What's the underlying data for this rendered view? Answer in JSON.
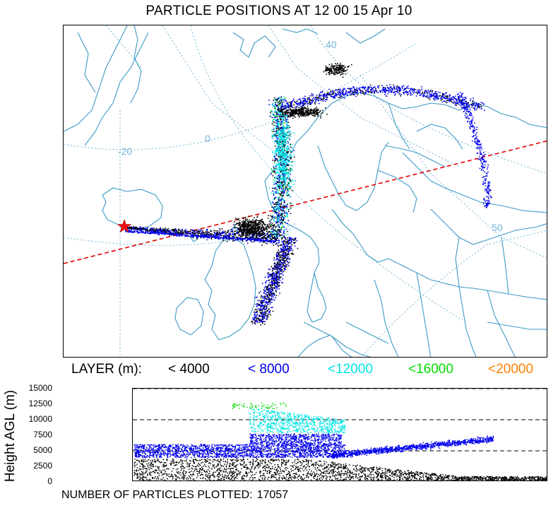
{
  "title": "PARTICLE POSITIONS AT 12 00  15 Apr 10",
  "legend": {
    "label": "LAYER (m):",
    "items": [
      {
        "label": "< 4000",
        "color": "#000000"
      },
      {
        "label": "< 8000",
        "color": "#0000ee"
      },
      {
        "label": "<12000",
        "color": "#00e5e5"
      },
      {
        "label": "<16000",
        "color": "#00dd00"
      },
      {
        "label": "<20000",
        "color": "#ff7f00"
      }
    ]
  },
  "map": {
    "grid_labels": [
      "40",
      "0",
      "-20",
      "50"
    ],
    "source_marker": "red-star",
    "coast_color": "#3b9ac6",
    "grid_color": "#6fb4d6",
    "trajectory_line_color": "#e00000"
  },
  "height_panel": {
    "ylabel": "Height AGL (m)",
    "yticks": [
      "15000",
      "12500",
      "10000",
      "7500",
      "5000",
      "2500",
      "0"
    ]
  },
  "footer": {
    "count_label": "NUMBER OF PARTICLES PLOTTED:",
    "count_value": "17057"
  },
  "chart_data": [
    {
      "type": "scatter",
      "title": "PARTICLE POSITIONS AT 12 00  15 Apr 10",
      "series": [
        {
          "name": "< 4000",
          "color": "#000000"
        },
        {
          "name": "< 8000",
          "color": "#0000ee"
        },
        {
          "name": "<12000",
          "color": "#00e5e5"
        },
        {
          "name": "<16000",
          "color": "#00dd00"
        },
        {
          "name": "<20000",
          "color": "#ff7f00"
        }
      ],
      "particle_count": 17057
    },
    {
      "type": "scatter",
      "ylabel": "Height AGL (m)",
      "ylim": [
        0,
        15000
      ],
      "yticks": [
        0,
        2500,
        5000,
        7500,
        10000,
        12500,
        15000
      ],
      "reference_lines": [
        5000,
        10000,
        15000
      ],
      "layers": [
        {
          "name": "< 4000",
          "color": "#000000",
          "height_range": [
            0,
            3800
          ]
        },
        {
          "name": "< 8000",
          "color": "#0000ee",
          "height_range": [
            4000,
            7800
          ]
        },
        {
          "name": "<12000",
          "color": "#00e5e5",
          "height_range": [
            8000,
            12000
          ]
        },
        {
          "name": "<16000",
          "color": "#00dd00",
          "height_range": [
            12000,
            12900
          ]
        }
      ]
    }
  ]
}
